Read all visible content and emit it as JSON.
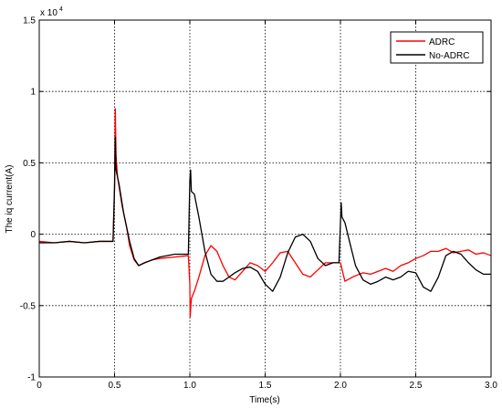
{
  "chart_data": {
    "type": "line",
    "title": "",
    "xlabel": "Time(s)",
    "ylabel": "The iq current(A)",
    "exponent_label": "x 10",
    "exponent_power": "4",
    "xlim": [
      0,
      3
    ],
    "ylim": [
      -1,
      1.5
    ],
    "x_ticks": [
      0,
      0.5,
      1,
      1.5,
      2,
      2.5,
      3
    ],
    "x_tick_labels": [
      "0",
      "0.5",
      "1.0",
      "1.5",
      "2.0",
      "2.5",
      "3.0"
    ],
    "y_ticks": [
      -1,
      -0.5,
      0,
      0.5,
      1,
      1.5
    ],
    "y_tick_labels": [
      "-1",
      "-0.5",
      "0",
      "0.5",
      "1",
      "1.5"
    ],
    "grid": true,
    "legend_position": "top-right",
    "series": [
      {
        "name": "ADRC",
        "color": "#ff0000",
        "points": [
          [
            0,
            -0.05
          ],
          [
            0.1,
            -0.06
          ],
          [
            0.2,
            -0.05
          ],
          [
            0.3,
            -0.06
          ],
          [
            0.4,
            -0.05
          ],
          [
            0.49,
            -0.05
          ],
          [
            0.5,
            0.35
          ],
          [
            0.505,
            0.88
          ],
          [
            0.51,
            0.55
          ],
          [
            0.52,
            0.4
          ],
          [
            0.55,
            0.2
          ],
          [
            0.58,
            0.05
          ],
          [
            0.6,
            -0.08
          ],
          [
            0.63,
            -0.18
          ],
          [
            0.66,
            -0.22
          ],
          [
            0.7,
            -0.2
          ],
          [
            0.75,
            -0.18
          ],
          [
            0.8,
            -0.17
          ],
          [
            0.9,
            -0.16
          ],
          [
            0.99,
            -0.15
          ],
          [
            1.0,
            -0.35
          ],
          [
            1.002,
            -0.58
          ],
          [
            1.01,
            -0.45
          ],
          [
            1.03,
            -0.4
          ],
          [
            1.06,
            -0.3
          ],
          [
            1.1,
            -0.15
          ],
          [
            1.14,
            -0.08
          ],
          [
            1.18,
            -0.12
          ],
          [
            1.22,
            -0.22
          ],
          [
            1.26,
            -0.3
          ],
          [
            1.3,
            -0.32
          ],
          [
            1.35,
            -0.26
          ],
          [
            1.4,
            -0.2
          ],
          [
            1.45,
            -0.22
          ],
          [
            1.5,
            -0.26
          ],
          [
            1.55,
            -0.2
          ],
          [
            1.6,
            -0.13
          ],
          [
            1.65,
            -0.12
          ],
          [
            1.7,
            -0.2
          ],
          [
            1.75,
            -0.28
          ],
          [
            1.8,
            -0.3
          ],
          [
            1.85,
            -0.25
          ],
          [
            1.9,
            -0.2
          ],
          [
            1.95,
            -0.2
          ],
          [
            1.99,
            -0.2
          ],
          [
            2.0,
            -0.2
          ],
          [
            2.03,
            -0.33
          ],
          [
            2.08,
            -0.3
          ],
          [
            2.15,
            -0.27
          ],
          [
            2.2,
            -0.28
          ],
          [
            2.25,
            -0.26
          ],
          [
            2.3,
            -0.24
          ],
          [
            2.35,
            -0.26
          ],
          [
            2.4,
            -0.22
          ],
          [
            2.45,
            -0.2
          ],
          [
            2.5,
            -0.17
          ],
          [
            2.55,
            -0.15
          ],
          [
            2.6,
            -0.12
          ],
          [
            2.65,
            -0.12
          ],
          [
            2.7,
            -0.1
          ],
          [
            2.75,
            -0.13
          ],
          [
            2.8,
            -0.12
          ],
          [
            2.85,
            -0.11
          ],
          [
            2.9,
            -0.14
          ],
          [
            2.95,
            -0.13
          ],
          [
            3.0,
            -0.15
          ]
        ]
      },
      {
        "name": "No-ADRC",
        "color": "#000000",
        "points": [
          [
            0,
            -0.06
          ],
          [
            0.1,
            -0.06
          ],
          [
            0.2,
            -0.05
          ],
          [
            0.3,
            -0.06
          ],
          [
            0.4,
            -0.05
          ],
          [
            0.49,
            -0.05
          ],
          [
            0.5,
            0.32
          ],
          [
            0.505,
            0.68
          ],
          [
            0.51,
            0.45
          ],
          [
            0.53,
            0.35
          ],
          [
            0.56,
            0.15
          ],
          [
            0.6,
            -0.05
          ],
          [
            0.63,
            -0.17
          ],
          [
            0.66,
            -0.22
          ],
          [
            0.7,
            -0.2
          ],
          [
            0.75,
            -0.18
          ],
          [
            0.8,
            -0.16
          ],
          [
            0.9,
            -0.14
          ],
          [
            0.99,
            -0.14
          ],
          [
            1.0,
            0.38
          ],
          [
            1.005,
            0.45
          ],
          [
            1.01,
            0.3
          ],
          [
            1.03,
            0.28
          ],
          [
            1.06,
            0.12
          ],
          [
            1.1,
            -0.12
          ],
          [
            1.14,
            -0.28
          ],
          [
            1.18,
            -0.33
          ],
          [
            1.22,
            -0.33
          ],
          [
            1.26,
            -0.3
          ],
          [
            1.3,
            -0.27
          ],
          [
            1.35,
            -0.24
          ],
          [
            1.4,
            -0.23
          ],
          [
            1.45,
            -0.26
          ],
          [
            1.5,
            -0.35
          ],
          [
            1.55,
            -0.4
          ],
          [
            1.6,
            -0.3
          ],
          [
            1.65,
            -0.13
          ],
          [
            1.7,
            -0.02
          ],
          [
            1.75,
            0.0
          ],
          [
            1.8,
            -0.05
          ],
          [
            1.85,
            -0.17
          ],
          [
            1.9,
            -0.22
          ],
          [
            1.95,
            -0.2
          ],
          [
            1.99,
            -0.2
          ],
          [
            2.0,
            0.08
          ],
          [
            2.005,
            0.22
          ],
          [
            2.01,
            0.12
          ],
          [
            2.03,
            0.08
          ],
          [
            2.06,
            -0.05
          ],
          [
            2.1,
            -0.22
          ],
          [
            2.15,
            -0.32
          ],
          [
            2.2,
            -0.35
          ],
          [
            2.25,
            -0.33
          ],
          [
            2.3,
            -0.3
          ],
          [
            2.35,
            -0.32
          ],
          [
            2.4,
            -0.3
          ],
          [
            2.45,
            -0.26
          ],
          [
            2.5,
            -0.27
          ],
          [
            2.55,
            -0.37
          ],
          [
            2.6,
            -0.4
          ],
          [
            2.65,
            -0.3
          ],
          [
            2.7,
            -0.15
          ],
          [
            2.75,
            -0.12
          ],
          [
            2.8,
            -0.14
          ],
          [
            2.85,
            -0.2
          ],
          [
            2.9,
            -0.25
          ],
          [
            2.95,
            -0.28
          ],
          [
            3.0,
            -0.28
          ]
        ]
      }
    ]
  }
}
